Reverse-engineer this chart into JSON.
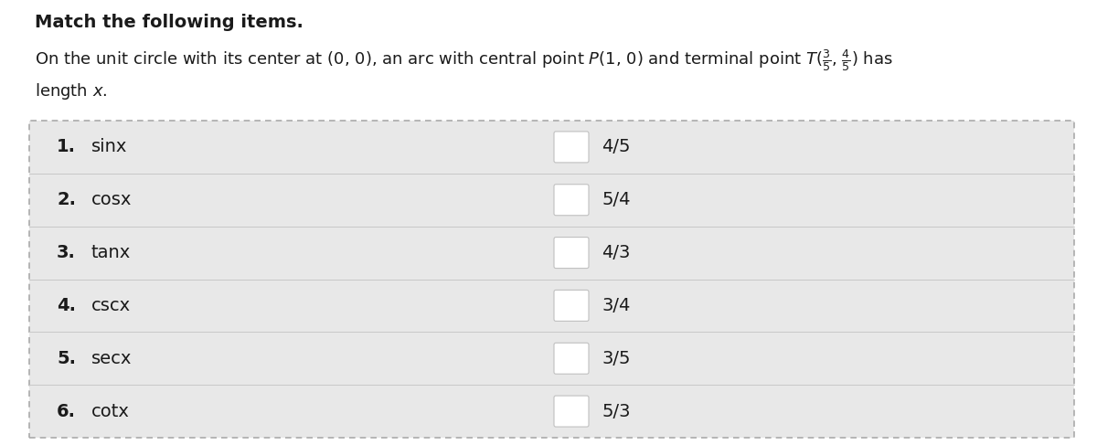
{
  "title": "Match the following items.",
  "items_left": [
    "sinx",
    "cosx",
    "tanx",
    "cscx",
    "secx",
    "cotx"
  ],
  "items_right": [
    "4/5",
    "5/4",
    "4/3",
    "3/4",
    "3/5",
    "5/3"
  ],
  "bg_color": "#e8e8e8",
  "white": "#ffffff",
  "border_color": "#b0b0b0",
  "text_color": "#1a1a1a",
  "title_fontsize": 14,
  "body_fontsize": 13,
  "item_fontsize": 14
}
